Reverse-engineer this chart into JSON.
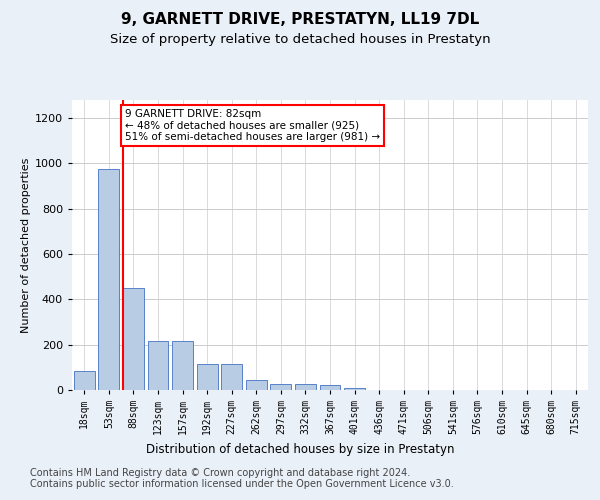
{
  "title1": "9, GARNETT DRIVE, PRESTATYN, LL19 7DL",
  "title2": "Size of property relative to detached houses in Prestatyn",
  "xlabel": "Distribution of detached houses by size in Prestatyn",
  "ylabel": "Number of detached properties",
  "footer": "Contains HM Land Registry data © Crown copyright and database right 2024.\nContains public sector information licensed under the Open Government Licence v3.0.",
  "bar_labels": [
    "18sqm",
    "53sqm",
    "88sqm",
    "123sqm",
    "157sqm",
    "192sqm",
    "227sqm",
    "262sqm",
    "297sqm",
    "332sqm",
    "367sqm",
    "401sqm",
    "436sqm",
    "471sqm",
    "506sqm",
    "541sqm",
    "576sqm",
    "610sqm",
    "645sqm",
    "680sqm",
    "715sqm"
  ],
  "bar_values": [
    82,
    975,
    450,
    215,
    215,
    115,
    115,
    45,
    25,
    25,
    20,
    10,
    0,
    0,
    0,
    0,
    0,
    0,
    0,
    0,
    0
  ],
  "bar_color": "#b8cce4",
  "bar_edge_color": "#4472c4",
  "property_line_index": 2,
  "property_line_color": "red",
  "annotation_line1": "9 GARNETT DRIVE: 82sqm",
  "annotation_line2": "← 48% of detached houses are smaller (925)",
  "annotation_line3": "51% of semi-detached houses are larger (981) →",
  "annotation_box_color": "white",
  "annotation_box_edge": "red",
  "ylim": [
    0,
    1280
  ],
  "yticks": [
    0,
    200,
    400,
    600,
    800,
    1000,
    1200
  ],
  "bg_color": "#eaf0f8",
  "plot_bg_color": "white",
  "grid_color": "#cccccc",
  "title1_fontsize": 11,
  "title2_fontsize": 9.5,
  "axis_label_fontsize": 8,
  "tick_fontsize": 7,
  "footer_fontsize": 7
}
